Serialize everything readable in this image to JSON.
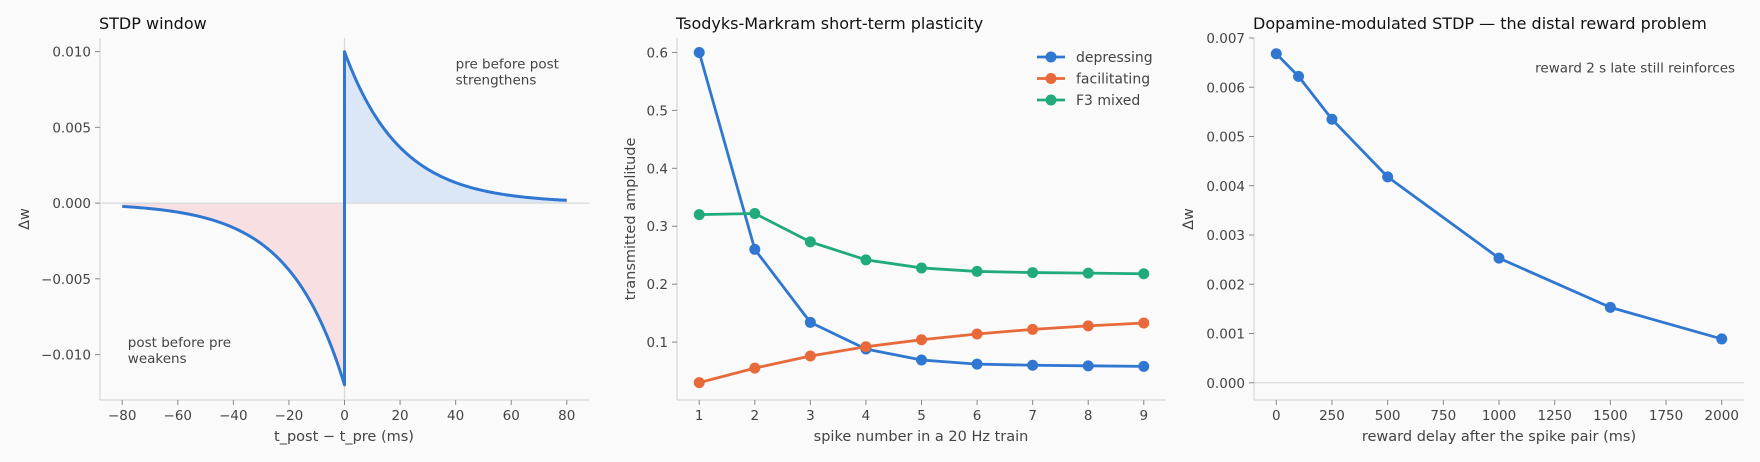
{
  "colors": {
    "blue": "#2f77d0",
    "orange": "#e8693a",
    "green": "#21ab7d",
    "ltp_fill": "#dbe7f7",
    "ltd_fill": "#f8dfe1"
  },
  "chart_data": [
    {
      "type": "line",
      "title": "STDP window",
      "xlabel": "t_post − t_pre  (ms)",
      "ylabel": "Δw",
      "xlim": [
        -88,
        88
      ],
      "ylim": [
        -0.013,
        0.0109
      ],
      "xticks": [
        -80,
        -60,
        -40,
        -20,
        0,
        20,
        40,
        60,
        80
      ],
      "xtick_labels": [
        "−80",
        "−60",
        "−40",
        "−20",
        "0",
        "20",
        "40",
        "60",
        "80"
      ],
      "yticks": [
        0.01,
        0.005,
        0.0,
        -0.005,
        -0.01
      ],
      "ytick_labels": [
        "0.010",
        "0.005",
        "0.000",
        "−0.005",
        "−0.010"
      ],
      "curve": {
        "a_plus": 0.01,
        "tau_plus": 20,
        "a_minus": 0.012,
        "tau_minus": 20,
        "x_range": [
          -80,
          80
        ]
      },
      "annotations": [
        {
          "lines": [
            "pre before post",
            "strengthens"
          ],
          "x": 40,
          "y": 0.0089
        },
        {
          "lines": [
            "post before pre",
            "weakens"
          ],
          "x": -78,
          "y": -0.0095
        }
      ],
      "grid": false
    },
    {
      "type": "line",
      "title": "Tsodyks-Markram short-term plasticity",
      "xlabel": "spike number in a 20 Hz train",
      "ylabel": "transmitted amplitude",
      "xlim": [
        0.6,
        9.4
      ],
      "ylim": [
        0.0,
        0.625
      ],
      "x": [
        1,
        2,
        3,
        4,
        5,
        6,
        7,
        8,
        9
      ],
      "xticks": [
        1,
        2,
        3,
        4,
        5,
        6,
        7,
        8,
        9
      ],
      "yticks": [
        0.1,
        0.2,
        0.3,
        0.4,
        0.5,
        0.6
      ],
      "ytick_labels": [
        "0.1",
        "0.2",
        "0.3",
        "0.4",
        "0.5",
        "0.6"
      ],
      "series": [
        {
          "name": "depressing",
          "color_key": "blue",
          "values": [
            0.6,
            0.26,
            0.134,
            0.088,
            0.069,
            0.062,
            0.06,
            0.059,
            0.058
          ]
        },
        {
          "name": "facilitating",
          "color_key": "orange",
          "values": [
            0.03,
            0.055,
            0.076,
            0.092,
            0.104,
            0.114,
            0.122,
            0.128,
            0.133
          ]
        },
        {
          "name": "F3 mixed",
          "color_key": "green",
          "values": [
            0.32,
            0.322,
            0.273,
            0.242,
            0.228,
            0.222,
            0.22,
            0.219,
            0.218
          ]
        }
      ],
      "legend": "top-right",
      "grid": false
    },
    {
      "type": "line",
      "title": "Dopamine-modulated STDP — the distal reward problem",
      "xlabel": "reward delay after the spike pair (ms)",
      "ylabel": "Δw",
      "xlim": [
        -100,
        2100
      ],
      "ylim": [
        -0.00035,
        0.007
      ],
      "xticks": [
        0,
        250,
        500,
        750,
        1000,
        1250,
        1500,
        1750,
        2000
      ],
      "yticks": [
        0.0,
        0.001,
        0.002,
        0.003,
        0.004,
        0.005,
        0.006,
        0.007
      ],
      "ytick_labels": [
        "0.000",
        "0.001",
        "0.002",
        "0.003",
        "0.004",
        "0.005",
        "0.006",
        "0.007"
      ],
      "series": [
        {
          "name": "",
          "color_key": "blue",
          "x": [
            0,
            100,
            250,
            500,
            1000,
            1500,
            2000
          ],
          "values": [
            0.00668,
            0.00622,
            0.00535,
            0.00418,
            0.00253,
            0.00153,
            0.00089
          ]
        }
      ],
      "annotations": [
        {
          "lines": [
            "reward 2 s late still reinforces"
          ],
          "x": 2060,
          "y": 0.0063,
          "anchor": "end"
        }
      ],
      "grid": false
    }
  ]
}
